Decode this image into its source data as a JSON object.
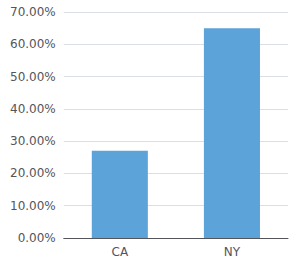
{
  "chart_data": {
    "type": "bar",
    "categories": [
      "CA",
      "NY"
    ],
    "values": [
      0.27,
      0.65
    ],
    "color": "#5ba3d9",
    "ylim": [
      0.0,
      0.7
    ],
    "yticks": [
      {
        "value": 0.0,
        "label": "0.00%"
      },
      {
        "value": 0.1,
        "label": "10.00%"
      },
      {
        "value": 0.2,
        "label": "20.00%"
      },
      {
        "value": 0.3,
        "label": "30.00%"
      },
      {
        "value": 0.4,
        "label": "40.00%"
      },
      {
        "value": 0.5,
        "label": "50.00%"
      },
      {
        "value": 0.6,
        "label": "60.00%"
      },
      {
        "value": 0.7,
        "label": "70.00%"
      }
    ],
    "grid": true
  }
}
